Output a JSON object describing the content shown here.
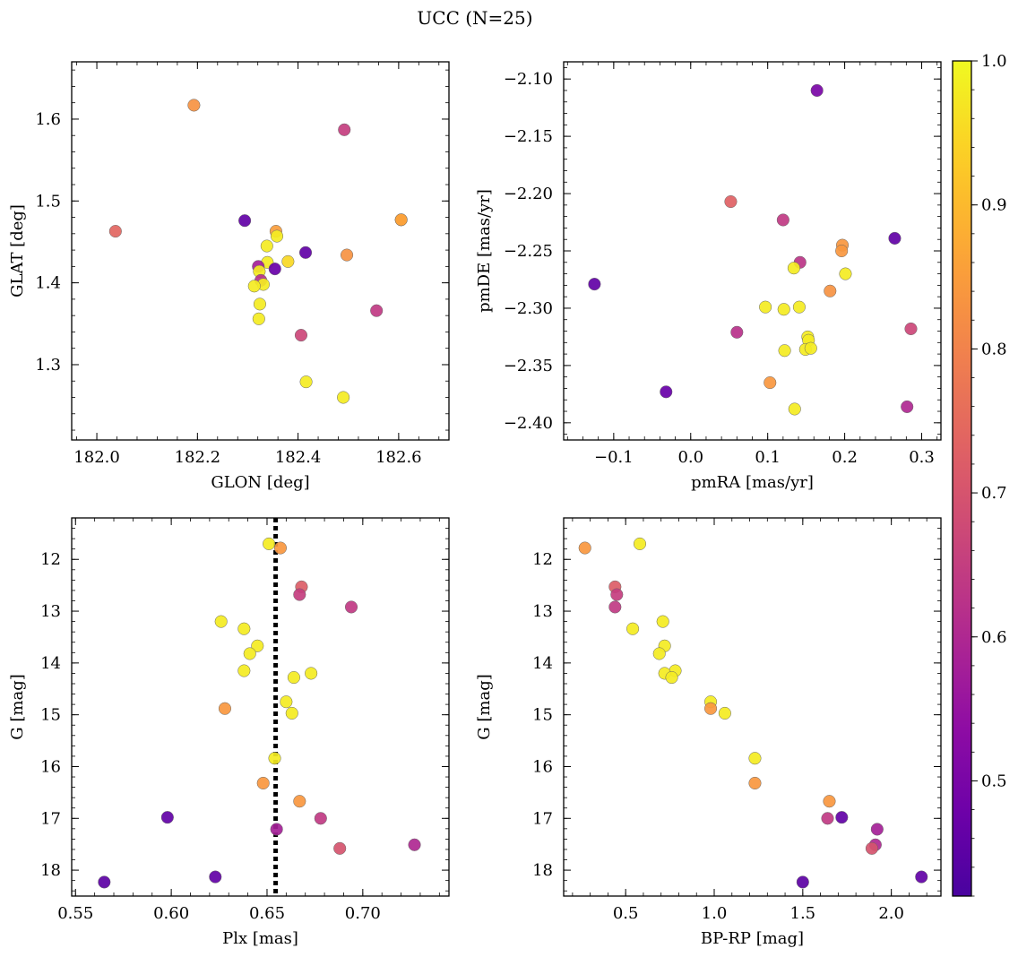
{
  "title": "UCC (N=25)",
  "colorbar": {
    "range": [
      0.42,
      1.0
    ],
    "ticks": [
      0.5,
      0.6,
      0.7,
      0.8,
      0.9,
      1.0
    ],
    "tick_labels": [
      "0.5",
      "0.6",
      "0.7",
      "0.8",
      "0.9",
      "1.0"
    ],
    "colormap": "plasma"
  },
  "chart_data": [
    {
      "type": "scatter",
      "xlabel": "GLON [deg]",
      "ylabel": "GLAT [deg]",
      "xlim": [
        181.95,
        182.7
      ],
      "ylim": [
        1.208,
        1.67
      ],
      "xticks": [
        182.0,
        182.2,
        182.4,
        182.6
      ],
      "xtick_labels": [
        "182.0",
        "182.2",
        "182.4",
        "182.6"
      ],
      "yticks": [
        1.3,
        1.4,
        1.5,
        1.6
      ],
      "ytick_labels": [
        "1.3",
        "1.4",
        "1.5",
        "1.6"
      ],
      "points": [
        {
          "x": 182.193,
          "y": 1.617,
          "c": 0.83
        },
        {
          "x": 182.492,
          "y": 1.587,
          "c": 0.65
        },
        {
          "x": 182.037,
          "y": 1.463,
          "c": 0.74
        },
        {
          "x": 182.294,
          "y": 1.476,
          "c": 0.46
        },
        {
          "x": 182.605,
          "y": 1.477,
          "c": 0.84
        },
        {
          "x": 182.605,
          "y": 1.477,
          "c": 0.86
        },
        {
          "x": 182.356,
          "y": 1.463,
          "c": 0.85
        },
        {
          "x": 182.358,
          "y": 1.457,
          "c": 0.98
        },
        {
          "x": 182.338,
          "y": 1.445,
          "c": 0.98
        },
        {
          "x": 182.415,
          "y": 1.437,
          "c": 0.46
        },
        {
          "x": 182.497,
          "y": 1.434,
          "c": 0.83
        },
        {
          "x": 182.339,
          "y": 1.425,
          "c": 0.98
        },
        {
          "x": 182.38,
          "y": 1.426,
          "c": 0.95
        },
        {
          "x": 182.321,
          "y": 1.42,
          "c": 0.58
        },
        {
          "x": 182.354,
          "y": 1.417,
          "c": 0.47
        },
        {
          "x": 182.323,
          "y": 1.414,
          "c": 0.98
        },
        {
          "x": 182.326,
          "y": 1.403,
          "c": 0.62
        },
        {
          "x": 182.331,
          "y": 1.398,
          "c": 0.98
        },
        {
          "x": 182.313,
          "y": 1.396,
          "c": 0.98
        },
        {
          "x": 182.324,
          "y": 1.374,
          "c": 0.98
        },
        {
          "x": 182.556,
          "y": 1.366,
          "c": 0.64
        },
        {
          "x": 182.322,
          "y": 1.356,
          "c": 0.98
        },
        {
          "x": 182.406,
          "y": 1.336,
          "c": 0.67
        },
        {
          "x": 182.416,
          "y": 1.279,
          "c": 0.98
        },
        {
          "x": 182.49,
          "y": 1.26,
          "c": 0.98
        }
      ]
    },
    {
      "type": "scatter",
      "xlabel": "pmRA [mas/yr]",
      "ylabel": "pmDE [mas/yr]",
      "xlim": [
        -0.165,
        0.325
      ],
      "ylim": [
        -2.415,
        -2.085
      ],
      "xticks": [
        -0.1,
        0.0,
        0.1,
        0.2,
        0.3
      ],
      "xtick_labels": [
        "−0.1",
        "0.0",
        "0.1",
        "0.2",
        "0.3"
      ],
      "yticks": [
        -2.4,
        -2.35,
        -2.3,
        -2.25,
        -2.2,
        -2.15,
        -2.1
      ],
      "ytick_labels": [
        "−2.40",
        "−2.35",
        "−2.30",
        "−2.25",
        "−2.20",
        "−2.15",
        "−2.10"
      ],
      "points": [
        {
          "x": 0.164,
          "y": -2.11,
          "c": 0.5
        },
        {
          "x": 0.052,
          "y": -2.207,
          "c": 0.73
        },
        {
          "x": 0.12,
          "y": -2.223,
          "c": 0.64
        },
        {
          "x": 0.265,
          "y": -2.239,
          "c": 0.46
        },
        {
          "x": 0.197,
          "y": -2.245,
          "c": 0.84
        },
        {
          "x": 0.196,
          "y": -2.25,
          "c": 0.84
        },
        {
          "x": 0.142,
          "y": -2.26,
          "c": 0.63
        },
        {
          "x": 0.134,
          "y": -2.265,
          "c": 0.98
        },
        {
          "x": 0.201,
          "y": -2.27,
          "c": 0.98
        },
        {
          "x": -0.125,
          "y": -2.279,
          "c": 0.46
        },
        {
          "x": 0.181,
          "y": -2.285,
          "c": 0.83
        },
        {
          "x": 0.097,
          "y": -2.299,
          "c": 0.98
        },
        {
          "x": 0.141,
          "y": -2.299,
          "c": 0.98
        },
        {
          "x": 0.121,
          "y": -2.301,
          "c": 0.98
        },
        {
          "x": 0.06,
          "y": -2.321,
          "c": 0.62
        },
        {
          "x": 0.286,
          "y": -2.318,
          "c": 0.67
        },
        {
          "x": 0.152,
          "y": -2.325,
          "c": 0.98
        },
        {
          "x": 0.153,
          "y": -2.328,
          "c": 0.98
        },
        {
          "x": 0.149,
          "y": -2.336,
          "c": 0.98
        },
        {
          "x": 0.156,
          "y": -2.335,
          "c": 0.98
        },
        {
          "x": 0.122,
          "y": -2.337,
          "c": 0.98
        },
        {
          "x": 0.103,
          "y": -2.365,
          "c": 0.84
        },
        {
          "x": -0.032,
          "y": -2.373,
          "c": 0.47
        },
        {
          "x": 0.135,
          "y": -2.388,
          "c": 0.98
        },
        {
          "x": 0.281,
          "y": -2.386,
          "c": 0.6
        }
      ]
    },
    {
      "type": "scatter",
      "xlabel": "Plx [mas]",
      "ylabel": "G [mag]",
      "xlim": [
        0.548,
        0.745
      ],
      "ylim": [
        18.5,
        11.2
      ],
      "y_inverted": true,
      "xticks": [
        0.55,
        0.6,
        0.65,
        0.7
      ],
      "xtick_labels": [
        "0.55",
        "0.60",
        "0.65",
        "0.70"
      ],
      "yticks": [
        12,
        13,
        14,
        15,
        16,
        17,
        18
      ],
      "ytick_labels": [
        "12",
        "13",
        "14",
        "15",
        "16",
        "17",
        "18"
      ],
      "vline": {
        "x": 0.6545,
        "style": "dotted"
      },
      "points": [
        {
          "x": 0.651,
          "y": 11.7,
          "c": 0.98
        },
        {
          "x": 0.657,
          "y": 11.78,
          "c": 0.84
        },
        {
          "x": 0.668,
          "y": 12.53,
          "c": 0.72
        },
        {
          "x": 0.667,
          "y": 12.68,
          "c": 0.65
        },
        {
          "x": 0.694,
          "y": 12.92,
          "c": 0.64
        },
        {
          "x": 0.626,
          "y": 13.2,
          "c": 0.98
        },
        {
          "x": 0.638,
          "y": 13.34,
          "c": 0.98
        },
        {
          "x": 0.645,
          "y": 13.67,
          "c": 0.98
        },
        {
          "x": 0.641,
          "y": 13.82,
          "c": 0.98
        },
        {
          "x": 0.638,
          "y": 14.15,
          "c": 0.98
        },
        {
          "x": 0.673,
          "y": 14.2,
          "c": 0.98
        },
        {
          "x": 0.664,
          "y": 14.28,
          "c": 0.98
        },
        {
          "x": 0.66,
          "y": 14.75,
          "c": 0.98
        },
        {
          "x": 0.628,
          "y": 14.88,
          "c": 0.84
        },
        {
          "x": 0.663,
          "y": 14.97,
          "c": 0.98
        },
        {
          "x": 0.654,
          "y": 15.84,
          "c": 0.98
        },
        {
          "x": 0.648,
          "y": 16.32,
          "c": 0.84
        },
        {
          "x": 0.667,
          "y": 16.67,
          "c": 0.84
        },
        {
          "x": 0.598,
          "y": 16.98,
          "c": 0.46
        },
        {
          "x": 0.678,
          "y": 17.0,
          "c": 0.64
        },
        {
          "x": 0.655,
          "y": 17.21,
          "c": 0.58
        },
        {
          "x": 0.727,
          "y": 17.51,
          "c": 0.6
        },
        {
          "x": 0.688,
          "y": 17.58,
          "c": 0.7
        },
        {
          "x": 0.623,
          "y": 18.13,
          "c": 0.46
        },
        {
          "x": 0.565,
          "y": 18.23,
          "c": 0.45
        }
      ]
    },
    {
      "type": "scatter",
      "xlabel": "BP-RP [mag]",
      "ylabel": "G [mag]",
      "xlim": [
        0.15,
        2.28
      ],
      "ylim": [
        18.5,
        11.2
      ],
      "y_inverted": true,
      "xticks": [
        0.5,
        1.0,
        1.5,
        2.0
      ],
      "xtick_labels": [
        "0.5",
        "1.0",
        "1.5",
        "2.0"
      ],
      "yticks": [
        12,
        13,
        14,
        15,
        16,
        17,
        18
      ],
      "ytick_labels": [
        "12",
        "13",
        "14",
        "15",
        "16",
        "17",
        "18"
      ],
      "points": [
        {
          "x": 0.58,
          "y": 11.7,
          "c": 0.98
        },
        {
          "x": 0.27,
          "y": 11.78,
          "c": 0.84
        },
        {
          "x": 0.44,
          "y": 12.53,
          "c": 0.72
        },
        {
          "x": 0.45,
          "y": 12.68,
          "c": 0.65
        },
        {
          "x": 0.44,
          "y": 12.92,
          "c": 0.64
        },
        {
          "x": 0.71,
          "y": 13.2,
          "c": 0.98
        },
        {
          "x": 0.54,
          "y": 13.34,
          "c": 0.98
        },
        {
          "x": 0.72,
          "y": 13.67,
          "c": 0.98
        },
        {
          "x": 0.69,
          "y": 13.82,
          "c": 0.98
        },
        {
          "x": 0.78,
          "y": 14.15,
          "c": 0.98
        },
        {
          "x": 0.72,
          "y": 14.2,
          "c": 0.98
        },
        {
          "x": 0.76,
          "y": 14.28,
          "c": 0.98
        },
        {
          "x": 0.98,
          "y": 14.75,
          "c": 0.98
        },
        {
          "x": 0.98,
          "y": 14.88,
          "c": 0.84
        },
        {
          "x": 1.06,
          "y": 14.97,
          "c": 0.98
        },
        {
          "x": 1.23,
          "y": 15.84,
          "c": 0.98
        },
        {
          "x": 1.23,
          "y": 16.32,
          "c": 0.84
        },
        {
          "x": 1.65,
          "y": 16.67,
          "c": 0.84
        },
        {
          "x": 1.72,
          "y": 16.98,
          "c": 0.46
        },
        {
          "x": 1.64,
          "y": 17.0,
          "c": 0.64
        },
        {
          "x": 1.92,
          "y": 17.21,
          "c": 0.58
        },
        {
          "x": 1.91,
          "y": 17.51,
          "c": 0.6
        },
        {
          "x": 1.89,
          "y": 17.58,
          "c": 0.7
        },
        {
          "x": 2.17,
          "y": 18.13,
          "c": 0.46
        },
        {
          "x": 1.5,
          "y": 18.23,
          "c": 0.45
        }
      ]
    }
  ]
}
